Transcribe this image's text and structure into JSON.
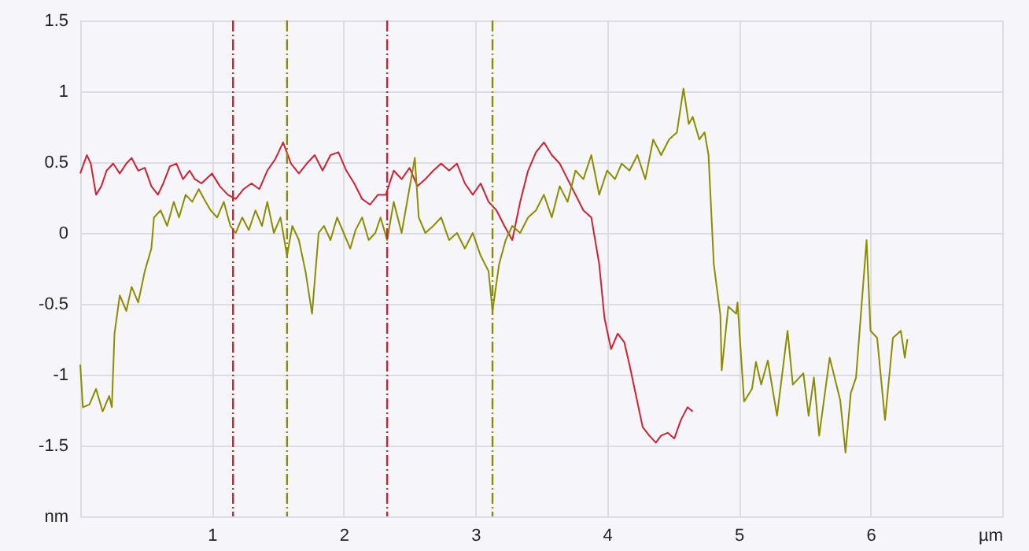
{
  "chart_data": {
    "type": "line",
    "xlim": [
      0,
      7
    ],
    "ylim": [
      -2,
      1.5
    ],
    "xticks": [
      1,
      2,
      3,
      4,
      5,
      6,
      {
        "value": 7,
        "label": "µm"
      }
    ],
    "yticks": [
      {
        "value": -2,
        "label": "nm"
      },
      -1.5,
      -1,
      -0.5,
      0,
      0.5,
      1,
      1.5
    ],
    "grid": true,
    "ref_lines": [
      {
        "axis": "x",
        "value": 1.16,
        "color": "#cc2233",
        "line_style": "dashed"
      },
      {
        "axis": "x",
        "value": 1.57,
        "color": "#8c8c00",
        "line_style": "dashed"
      },
      {
        "axis": "x",
        "value": 2.33,
        "color": "#cc2233",
        "line_style": "dashed"
      },
      {
        "axis": "x",
        "value": 3.13,
        "color": "#8c8c00",
        "line_style": "dashed"
      }
    ],
    "series": [
      {
        "color": "#cc2233",
        "x": [
          0,
          0.05,
          0.08,
          0.12,
          0.16,
          0.2,
          0.25,
          0.3,
          0.35,
          0.39,
          0.44,
          0.49,
          0.54,
          0.59,
          0.63,
          0.68,
          0.73,
          0.78,
          0.83,
          0.87,
          0.92,
          1.0,
          1.06,
          1.12,
          1.18,
          1.24,
          1.3,
          1.36,
          1.42,
          1.48,
          1.54,
          1.6,
          1.66,
          1.72,
          1.78,
          1.84,
          1.9,
          1.96,
          2.02,
          2.08,
          2.14,
          2.2,
          2.26,
          2.32,
          2.38,
          2.44,
          2.5,
          2.56,
          2.62,
          2.68,
          2.74,
          2.8,
          2.86,
          2.92,
          2.98,
          3.04,
          3.1,
          3.16,
          3.22,
          3.28,
          3.34,
          3.4,
          3.46,
          3.52,
          3.58,
          3.64,
          3.7,
          3.76,
          3.82,
          3.88,
          3.94,
          3.98,
          4.03,
          4.08,
          4.13,
          4.17,
          4.22,
          4.27,
          4.32,
          4.37,
          4.41,
          4.46,
          4.51,
          4.56,
          4.61,
          4.65
        ],
        "values": [
          0.42,
          0.55,
          0.49,
          0.27,
          0.33,
          0.44,
          0.49,
          0.42,
          0.49,
          0.53,
          0.44,
          0.46,
          0.33,
          0.27,
          0.35,
          0.47,
          0.49,
          0.38,
          0.44,
          0.38,
          0.35,
          0.42,
          0.33,
          0.27,
          0.24,
          0.31,
          0.35,
          0.31,
          0.44,
          0.52,
          0.64,
          0.49,
          0.42,
          0.49,
          0.55,
          0.44,
          0.55,
          0.57,
          0.44,
          0.35,
          0.24,
          0.2,
          0.27,
          0.27,
          0.44,
          0.38,
          0.46,
          0.33,
          0.38,
          0.44,
          0.49,
          0.44,
          0.49,
          0.35,
          0.27,
          0.35,
          0.22,
          0.16,
          0.05,
          -0.05,
          0.22,
          0.44,
          0.57,
          0.64,
          0.55,
          0.49,
          0.38,
          0.27,
          0.16,
          0.11,
          -0.22,
          -0.6,
          -0.82,
          -0.71,
          -0.77,
          -0.93,
          -1.15,
          -1.37,
          -1.43,
          -1.48,
          -1.43,
          -1.41,
          -1.45,
          -1.32,
          -1.23,
          -1.26
        ]
      },
      {
        "color": "#8c8c00",
        "x": [
          0,
          0.02,
          0.07,
          0.12,
          0.17,
          0.22,
          0.24,
          0.26,
          0.3,
          0.35,
          0.39,
          0.44,
          0.49,
          0.54,
          0.56,
          0.61,
          0.66,
          0.71,
          0.75,
          0.8,
          0.85,
          0.9,
          0.94,
          0.99,
          1.04,
          1.09,
          1.14,
          1.18,
          1.23,
          1.28,
          1.33,
          1.38,
          1.42,
          1.47,
          1.52,
          1.57,
          1.61,
          1.66,
          1.71,
          1.76,
          1.81,
          1.85,
          1.9,
          1.95,
          2.0,
          2.05,
          2.09,
          2.14,
          2.19,
          2.24,
          2.28,
          2.33,
          2.38,
          2.44,
          2.54,
          2.57,
          2.62,
          2.68,
          2.74,
          2.8,
          2.86,
          2.92,
          2.98,
          3.04,
          3.1,
          3.13,
          3.18,
          3.23,
          3.28,
          3.34,
          3.4,
          3.46,
          3.52,
          3.58,
          3.64,
          3.7,
          3.76,
          3.82,
          3.88,
          3.94,
          4.0,
          4.06,
          4.11,
          4.17,
          4.23,
          4.29,
          4.35,
          4.41,
          4.47,
          4.53,
          4.58,
          4.62,
          4.65,
          4.7,
          4.74,
          4.77,
          4.81,
          4.86,
          4.87,
          4.92,
          4.98,
          4.99,
          5.04,
          5.1,
          5.13,
          5.17,
          5.22,
          5.29,
          5.37,
          5.41,
          5.49,
          5.53,
          5.57,
          5.61,
          5.69,
          5.77,
          5.81,
          5.85,
          5.89,
          5.97,
          6.0,
          6.05,
          6.11,
          6.17,
          6.23,
          6.26,
          6.28
        ],
        "values": [
          -0.93,
          -1.23,
          -1.21,
          -1.1,
          -1.26,
          -1.15,
          -1.23,
          -0.71,
          -0.44,
          -0.55,
          -0.38,
          -0.49,
          -0.27,
          -0.11,
          0.11,
          0.16,
          0.05,
          0.22,
          0.11,
          0.27,
          0.22,
          0.31,
          0.24,
          0.16,
          0.11,
          0.22,
          0.05,
          0,
          0.11,
          0.02,
          0.16,
          0.05,
          0.22,
          0,
          0.11,
          -0.16,
          0.05,
          -0.05,
          -0.27,
          -0.57,
          0,
          0.05,
          -0.05,
          0.11,
          0,
          -0.11,
          0.02,
          0.11,
          -0.05,
          0,
          0.11,
          -0.05,
          0.22,
          0,
          0.53,
          0.11,
          0,
          0.05,
          0.11,
          -0.05,
          0,
          -0.11,
          0,
          -0.16,
          -0.27,
          -0.55,
          -0.22,
          -0.05,
          0.05,
          0,
          0.11,
          0.16,
          0.27,
          0.11,
          0.33,
          0.22,
          0.44,
          0.38,
          0.55,
          0.27,
          0.44,
          0.38,
          0.49,
          0.44,
          0.55,
          0.38,
          0.66,
          0.55,
          0.66,
          0.71,
          1.02,
          0.77,
          0.82,
          0.66,
          0.71,
          0.55,
          -0.22,
          -0.58,
          -0.97,
          -0.52,
          -0.57,
          -0.49,
          -1.19,
          -1.1,
          -0.91,
          -1.07,
          -0.9,
          -1.29,
          -0.69,
          -1.07,
          -0.99,
          -1.29,
          -1.02,
          -1.43,
          -0.88,
          -1.18,
          -1.55,
          -1.13,
          -1.02,
          -0.05,
          -0.69,
          -0.74,
          -1.32,
          -0.74,
          -0.69,
          -0.88,
          -0.75
        ]
      }
    ]
  }
}
